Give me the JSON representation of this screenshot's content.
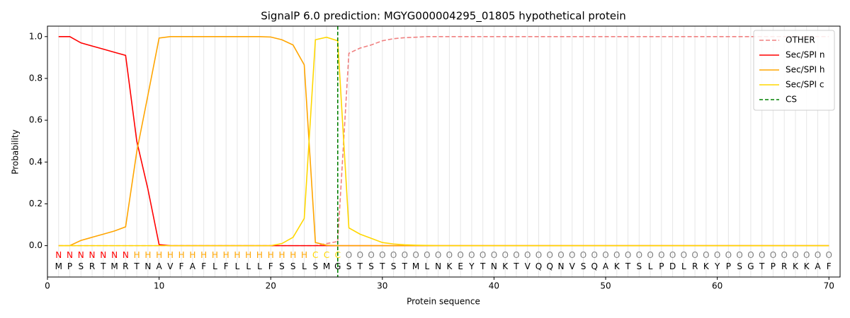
{
  "chart_data": {
    "type": "line",
    "title": "SignalP 6.0 prediction: MGYG000004295_01805 hypothetical protein",
    "xlabel": "Protein sequence",
    "ylabel": "Probability",
    "xlim": [
      0,
      71
    ],
    "ylim": [
      -0.15,
      1.05
    ],
    "xticks": [
      0,
      10,
      20,
      30,
      40,
      50,
      60,
      70
    ],
    "yticks": [
      {
        "value": 0,
        "label": "0.0"
      },
      {
        "value": 0.2,
        "label": "0.2"
      },
      {
        "value": 0.4,
        "label": "0.4"
      },
      {
        "value": 0.6,
        "label": "0.6"
      },
      {
        "value": 0.8,
        "label": "0.8"
      },
      {
        "value": 1,
        "label": "1.0"
      }
    ],
    "grid": "x",
    "legend": "upper right",
    "x": [
      1,
      2,
      3,
      4,
      5,
      6,
      7,
      8,
      9,
      10,
      11,
      12,
      13,
      14,
      15,
      16,
      17,
      18,
      19,
      20,
      21,
      22,
      23,
      24,
      25,
      26,
      27,
      28,
      29,
      30,
      31,
      32,
      33,
      34,
      35,
      36,
      37,
      38,
      39,
      40,
      41,
      42,
      43,
      44,
      45,
      46,
      47,
      48,
      49,
      50,
      51,
      52,
      53,
      54,
      55,
      56,
      57,
      58,
      59,
      60,
      61,
      62,
      63,
      64,
      65,
      66,
      67,
      68,
      69,
      70
    ],
    "residues": [
      "M",
      "P",
      "S",
      "R",
      "T",
      "M",
      "R",
      "T",
      "N",
      "A",
      "V",
      "F",
      "A",
      "F",
      "L",
      "F",
      "L",
      "L",
      "L",
      "F",
      "S",
      "S",
      "L",
      "S",
      "M",
      "G",
      "S",
      "T",
      "S",
      "T",
      "S",
      "T",
      "M",
      "L",
      "N",
      "K",
      "E",
      "Y",
      "T",
      "N",
      "K",
      "T",
      "V",
      "Q",
      "Q",
      "N",
      "V",
      "S",
      "Q",
      "A",
      "K",
      "T",
      "S",
      "L",
      "P",
      "D",
      "L",
      "R",
      "K",
      "Y",
      "P",
      "S",
      "G",
      "T",
      "P",
      "R",
      "K",
      "K",
      "A",
      "F"
    ],
    "regions": [
      "N",
      "N",
      "N",
      "N",
      "N",
      "N",
      "N",
      "H",
      "H",
      "H",
      "H",
      "H",
      "H",
      "H",
      "H",
      "H",
      "H",
      "H",
      "H",
      "H",
      "H",
      "H",
      "H",
      "C",
      "C",
      "C",
      "O",
      "O",
      "O",
      "O",
      "O",
      "O",
      "O",
      "O",
      "O",
      "O",
      "O",
      "O",
      "O",
      "O",
      "O",
      "O",
      "O",
      "O",
      "O",
      "O",
      "O",
      "O",
      "O",
      "O",
      "O",
      "O",
      "O",
      "O",
      "O",
      "O",
      "O",
      "O",
      "O",
      "O",
      "O",
      "O",
      "O",
      "O",
      "O",
      "O",
      "O",
      "O",
      "O",
      "O"
    ],
    "region_colors": {
      "N": "red",
      "H": "orange",
      "C": "gold",
      "O": "gray"
    },
    "series": [
      {
        "name": "OTHER",
        "color": "lightcoral",
        "dashed": true,
        "values": [
          0,
          0,
          0,
          0,
          0,
          0,
          0,
          0,
          0,
          0,
          0,
          0,
          0,
          0,
          0,
          0,
          0,
          0,
          0,
          0,
          0,
          0,
          0,
          0,
          0.01,
          0.02,
          0.92,
          0.945,
          0.96,
          0.98,
          0.99,
          0.995,
          0.997,
          1,
          1,
          1,
          1,
          1,
          1,
          1,
          1,
          1,
          1,
          1,
          1,
          1,
          1,
          1,
          1,
          1,
          1,
          1,
          1,
          1,
          1,
          1,
          1,
          1,
          1,
          1,
          1,
          1,
          1,
          1,
          1,
          1,
          1,
          1,
          1,
          1
        ]
      },
      {
        "name": "Sec/SPI n",
        "color": "red",
        "values": [
          1,
          1,
          0.97,
          0.955,
          0.94,
          0.925,
          0.91,
          0.5,
          0.27,
          0.005,
          0,
          0,
          0,
          0,
          0,
          0,
          0,
          0,
          0,
          0,
          0,
          0,
          0,
          0,
          0,
          0,
          0,
          0,
          0,
          0,
          0,
          0,
          0,
          0,
          0,
          0,
          0,
          0,
          0,
          0,
          0,
          0,
          0,
          0,
          0,
          0,
          0,
          0,
          0,
          0,
          0,
          0,
          0,
          0,
          0,
          0,
          0,
          0,
          0,
          0,
          0,
          0,
          0,
          0,
          0,
          0,
          0,
          0,
          0,
          0
        ]
      },
      {
        "name": "Sec/SPI h",
        "color": "orange",
        "values": [
          0,
          0,
          0.025,
          0.04,
          0.055,
          0.07,
          0.09,
          0.45,
          0.72,
          0.993,
          1,
          1,
          1,
          1,
          1,
          1,
          1,
          1,
          1,
          0.998,
          0.985,
          0.96,
          0.865,
          0.015,
          0.002,
          0,
          0,
          0,
          0,
          0,
          0,
          0,
          0,
          0,
          0,
          0,
          0,
          0,
          0,
          0,
          0,
          0,
          0,
          0,
          0,
          0,
          0,
          0,
          0,
          0,
          0,
          0,
          0,
          0,
          0,
          0,
          0,
          0,
          0,
          0,
          0,
          0,
          0,
          0,
          0,
          0,
          0,
          0,
          0,
          0
        ]
      },
      {
        "name": "Sec/SPI c",
        "color": "gold",
        "values": [
          0,
          0,
          0,
          0,
          0,
          0,
          0,
          0,
          0,
          0,
          0,
          0,
          0,
          0,
          0,
          0,
          0,
          0,
          0,
          0,
          0.01,
          0.04,
          0.13,
          0.985,
          0.997,
          0.98,
          0.085,
          0.055,
          0.035,
          0.015,
          0.008,
          0.004,
          0.002,
          0.001,
          0,
          0,
          0,
          0,
          0,
          0,
          0,
          0,
          0,
          0,
          0,
          0,
          0,
          0,
          0,
          0,
          0,
          0,
          0,
          0,
          0,
          0,
          0,
          0,
          0,
          0,
          0,
          0,
          0,
          0,
          0,
          0,
          0,
          0,
          0,
          0
        ]
      }
    ],
    "cs": {
      "name": "CS",
      "x": 26,
      "color": "green"
    }
  }
}
